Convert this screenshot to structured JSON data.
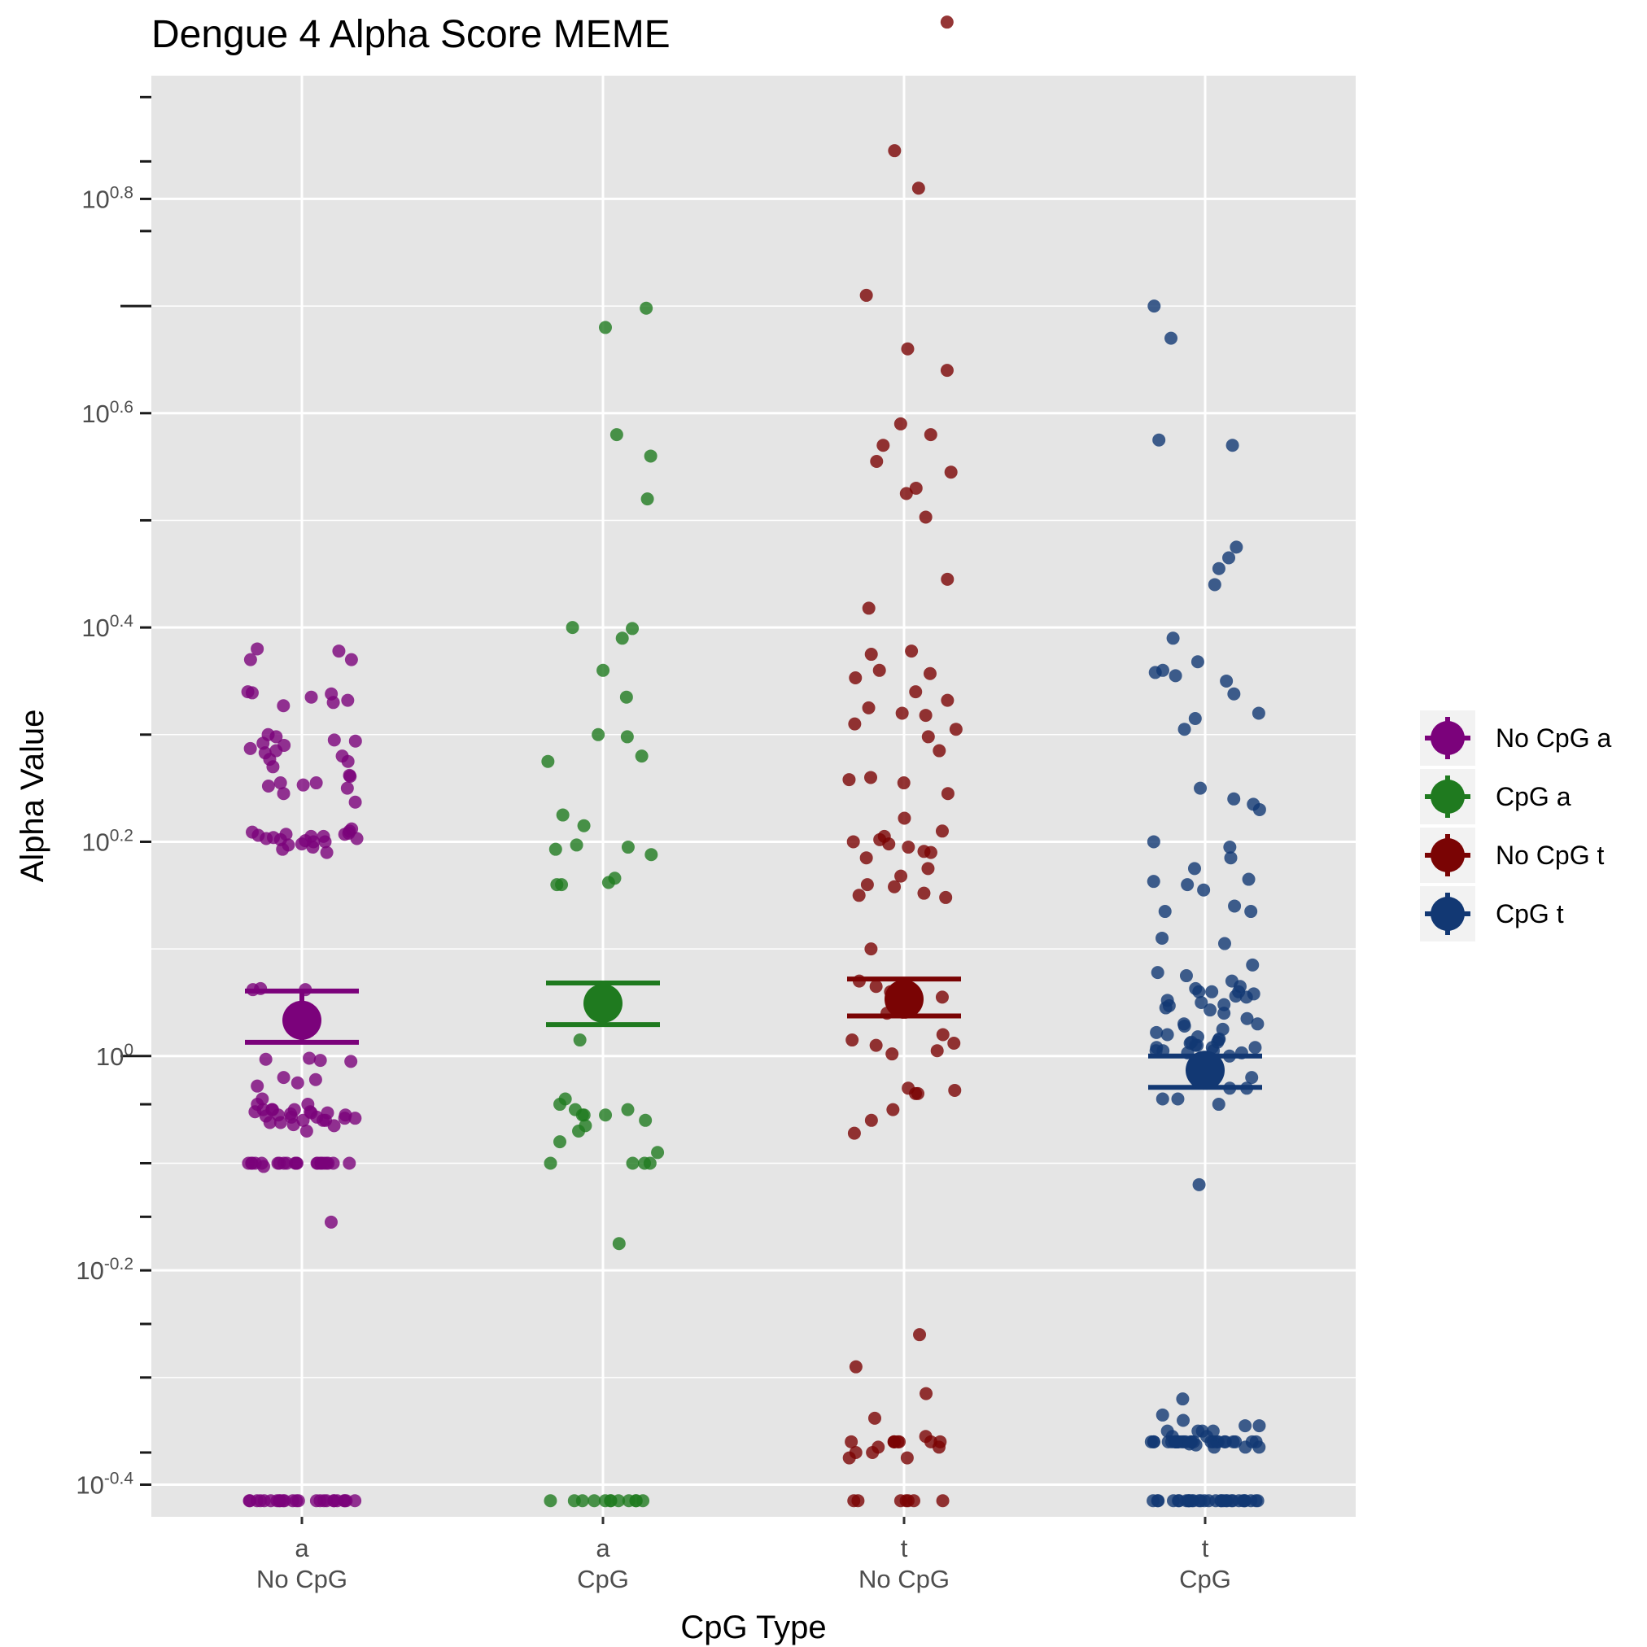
{
  "chart_data": {
    "type": "scatter",
    "title": "Dengue 4 Alpha Score MEME",
    "xlabel": "CpG Type",
    "ylabel": "Alpha Value",
    "y_scale": "log10",
    "ylim_log10": [
      -0.43,
      0.915
    ],
    "y_ticks": [
      {
        "base": "10",
        "exp": "-0.4",
        "log10": -0.4
      },
      {
        "base": "10",
        "exp": "-0.2",
        "log10": -0.2
      },
      {
        "base": "10",
        "exp": "0",
        "log10": 0
      },
      {
        "base": "10",
        "exp": "0.2",
        "log10": 0.2
      },
      {
        "base": "10",
        "exp": "0.4",
        "log10": 0.4
      },
      {
        "base": "10",
        "exp": "0.6",
        "log10": 0.6
      },
      {
        "base": "10",
        "exp": "0.8",
        "log10": 0.8
      }
    ],
    "minor_ticks_log10": [
      -0.37,
      -0.3,
      -0.25,
      -0.15,
      -0.1,
      -0.045,
      0.3,
      0.5,
      0.7,
      0.77,
      0.835,
      0.895
    ],
    "major_tick_long_log10": [
      0,
      0.7
    ],
    "categories": [
      {
        "line1": "a",
        "line2": "No CpG"
      },
      {
        "line1": "a",
        "line2": "CpG"
      },
      {
        "line1": "t",
        "line2": "No CpG"
      },
      {
        "line1": "t",
        "line2": "CpG"
      }
    ],
    "grid": true,
    "legend_position": "right",
    "series": [
      {
        "name": "No CpG a",
        "color": "#7b027b",
        "mean": 1.08,
        "ci": [
          1.03,
          1.15
        ],
        "points": [
          0.38,
          0.378,
          0.37,
          0.37,
          0.34,
          0.339,
          0.338,
          0.335,
          0.332,
          0.33,
          0.327,
          0.3,
          0.298,
          0.295,
          0.294,
          0.292,
          0.29,
          0.287,
          0.285,
          0.283,
          0.28,
          0.277,
          0.275,
          0.27,
          0.262,
          0.261,
          0.255,
          0.255,
          0.253,
          0.252,
          0.25,
          0.245,
          0.237,
          0.212,
          0.21,
          0.209,
          0.208,
          0.207,
          0.207,
          0.206,
          0.205,
          0.205,
          0.204,
          0.203,
          0.203,
          0.202,
          0.201,
          0.2,
          0.2,
          0.198,
          0.197,
          0.195,
          0.193,
          0.19,
          0.063,
          0.062,
          0.062,
          -0.002,
          -0.003,
          -0.004,
          -0.005,
          -0.02,
          -0.022,
          -0.025,
          -0.028,
          -0.04,
          -0.045,
          -0.045,
          -0.05,
          -0.05,
          -0.05,
          -0.05,
          -0.052,
          -0.052,
          -0.053,
          -0.053,
          -0.054,
          -0.055,
          -0.055,
          -0.056,
          -0.057,
          -0.057,
          -0.058,
          -0.058,
          -0.06,
          -0.06,
          -0.06,
          -0.062,
          -0.062,
          -0.064,
          -0.065,
          -0.07,
          -0.1,
          -0.1,
          -0.1,
          -0.1,
          -0.1,
          -0.1,
          -0.1,
          -0.1,
          -0.1,
          -0.1,
          -0.1,
          -0.1,
          -0.1,
          -0.1,
          -0.1,
          -0.1,
          -0.1,
          -0.1,
          -0.1,
          -0.1,
          -0.1,
          -0.103,
          -0.155,
          -0.415,
          -0.415,
          -0.415,
          -0.415,
          -0.415,
          -0.415,
          -0.415,
          -0.415,
          -0.415,
          -0.415,
          -0.415,
          -0.415,
          -0.415,
          -0.415,
          -0.415,
          -0.415,
          -0.415,
          -0.415,
          -0.415,
          -0.415,
          -0.415,
          -0.415,
          -0.415,
          -0.415,
          -0.415
        ]
      },
      {
        "name": "CpG a",
        "color": "#1f7a1f",
        "mean": 1.12,
        "ci": [
          1.07,
          1.17
        ],
        "points": [
          0.698,
          0.68,
          0.58,
          0.56,
          0.52,
          0.4,
          0.399,
          0.39,
          0.36,
          0.335,
          0.3,
          0.298,
          0.28,
          0.275,
          0.225,
          0.215,
          0.197,
          0.195,
          0.193,
          0.188,
          0.166,
          0.162,
          0.16,
          0.16,
          0.015,
          -0.04,
          -0.045,
          -0.05,
          -0.05,
          -0.055,
          -0.055,
          -0.055,
          -0.06,
          -0.065,
          -0.07,
          -0.08,
          -0.09,
          -0.1,
          -0.1,
          -0.1,
          -0.1,
          -0.175,
          -0.415,
          -0.415,
          -0.415,
          -0.415,
          -0.415,
          -0.415,
          -0.415,
          -0.415,
          -0.415,
          -0.415,
          -0.415,
          -0.415
        ]
      },
      {
        "name": "No CpG t",
        "color": "#7a0404",
        "mean": 1.13,
        "ci": [
          1.09,
          1.18
        ],
        "points": [
          0.965,
          0.845,
          0.81,
          0.71,
          0.66,
          0.64,
          0.59,
          0.58,
          0.57,
          0.555,
          0.545,
          0.53,
          0.525,
          0.503,
          0.445,
          0.418,
          0.378,
          0.375,
          0.36,
          0.357,
          0.353,
          0.34,
          0.332,
          0.325,
          0.32,
          0.318,
          0.31,
          0.305,
          0.298,
          0.285,
          0.26,
          0.258,
          0.255,
          0.245,
          0.222,
          0.21,
          0.205,
          0.202,
          0.2,
          0.198,
          0.195,
          0.191,
          0.19,
          0.185,
          0.175,
          0.168,
          0.16,
          0.158,
          0.152,
          0.15,
          0.148,
          0.1,
          0.07,
          0.065,
          0.06,
          0.055,
          0.04,
          0.02,
          0.015,
          0.012,
          0.01,
          0.005,
          0.002,
          -0.03,
          -0.032,
          -0.035,
          -0.035,
          -0.05,
          -0.06,
          -0.072,
          -0.26,
          -0.37,
          -0.375,
          -0.338,
          -0.355,
          -0.36,
          -0.36,
          -0.36,
          -0.36,
          -0.36,
          -0.36,
          -0.36,
          -0.36,
          -0.365,
          -0.365,
          -0.37,
          -0.375,
          -0.315,
          -0.29,
          -0.415,
          -0.415,
          -0.415,
          -0.415,
          -0.415,
          -0.415,
          -0.415
        ]
      },
      {
        "name": "CpG t",
        "color": "#123873",
        "mean": 0.97,
        "ci": [
          0.935,
          1.0
        ],
        "points": [
          0.7,
          0.67,
          0.575,
          0.57,
          0.475,
          0.465,
          0.455,
          0.44,
          0.39,
          0.368,
          0.36,
          0.358,
          0.355,
          0.35,
          0.338,
          0.32,
          0.315,
          0.305,
          0.25,
          0.24,
          0.235,
          0.23,
          0.2,
          0.195,
          0.185,
          0.175,
          0.165,
          0.163,
          0.16,
          0.155,
          0.14,
          0.135,
          0.135,
          0.11,
          0.105,
          0.085,
          0.078,
          0.075,
          0.07,
          0.065,
          0.063,
          0.06,
          0.06,
          0.06,
          0.058,
          0.056,
          0.055,
          0.052,
          0.05,
          0.048,
          0.047,
          0.045,
          0.043,
          0.04,
          0.035,
          0.03,
          0.03,
          0.028,
          0.025,
          0.022,
          0.02,
          0.018,
          0.016,
          0.015,
          0.013,
          0.013,
          0.012,
          0.01,
          0.01,
          0.008,
          0.008,
          0.008,
          0.005,
          0.005,
          0.005,
          0.003,
          0.003,
          0.0,
          -0.02,
          -0.03,
          -0.03,
          -0.04,
          -0.04,
          -0.045,
          -0.12,
          -0.32,
          -0.335,
          -0.34,
          -0.345,
          -0.345,
          -0.35,
          -0.35,
          -0.35,
          -0.35,
          -0.355,
          -0.355,
          -0.36,
          -0.36,
          -0.36,
          -0.36,
          -0.36,
          -0.36,
          -0.36,
          -0.36,
          -0.36,
          -0.36,
          -0.36,
          -0.36,
          -0.36,
          -0.36,
          -0.36,
          -0.36,
          -0.36,
          -0.36,
          -0.36,
          -0.36,
          -0.36,
          -0.36,
          -0.36,
          -0.36,
          -0.36,
          -0.36,
          -0.36,
          -0.36,
          -0.362,
          -0.363,
          -0.365,
          -0.365,
          -0.365,
          -0.415,
          -0.415,
          -0.415,
          -0.415,
          -0.415,
          -0.415,
          -0.415,
          -0.415,
          -0.415,
          -0.415,
          -0.415,
          -0.415,
          -0.415,
          -0.415,
          -0.415,
          -0.415,
          -0.415,
          -0.415,
          -0.415,
          -0.415,
          -0.415,
          -0.415,
          -0.415,
          -0.415,
          -0.415,
          -0.415,
          -0.415,
          -0.415,
          -0.415,
          -0.415,
          -0.415
        ]
      }
    ]
  }
}
